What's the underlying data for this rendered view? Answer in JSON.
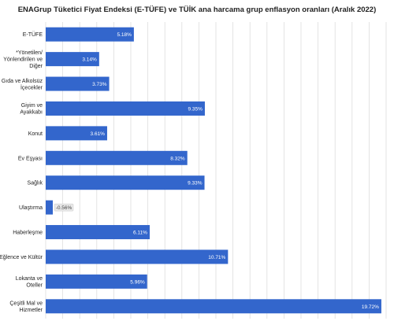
{
  "chart_data": {
    "type": "bar",
    "orientation": "horizontal",
    "title": "ENAGrup Tüketici Fiyat Endeksi (E-TÜFE) ve TÜİK ana harcama grup enflasyon oranları (Aralık 2022)",
    "categories": [
      [
        "E-TÜFE"
      ],
      [
        "*Yönetilen/",
        "Yönlendirilen ve",
        "Diğer"
      ],
      [
        "Gıda ve Alkolsüz",
        "İçecekler"
      ],
      [
        "Giyim ve",
        "Ayakkabı"
      ],
      [
        "Konut"
      ],
      [
        "Ev Eşyası"
      ],
      [
        "Sağlık"
      ],
      [
        "Ulaştırma"
      ],
      [
        "Haberleşme"
      ],
      [
        "Eğlence ve Kültür"
      ],
      [
        "Lokanta ve",
        "Oteller"
      ],
      [
        "Çeşitli Mal ve",
        "Hizmetler"
      ]
    ],
    "values": [
      5.18,
      3.14,
      3.73,
      9.35,
      3.61,
      8.32,
      9.33,
      -0.56,
      6.11,
      10.71,
      5.96,
      19.72
    ],
    "value_labels": [
      "5.18%",
      "3.14%",
      "3.73%",
      "9.35%",
      "3.61%",
      "8.32%",
      "9.33%",
      "-0.56%",
      "6.11%",
      "10.71%",
      "5.96%",
      "19.72%"
    ],
    "xlim": [
      0,
      20
    ],
    "grid": true,
    "colors": {
      "bar": "#3366cc",
      "grid": "#dddddd",
      "label_bg": "#e8e8e8"
    }
  }
}
